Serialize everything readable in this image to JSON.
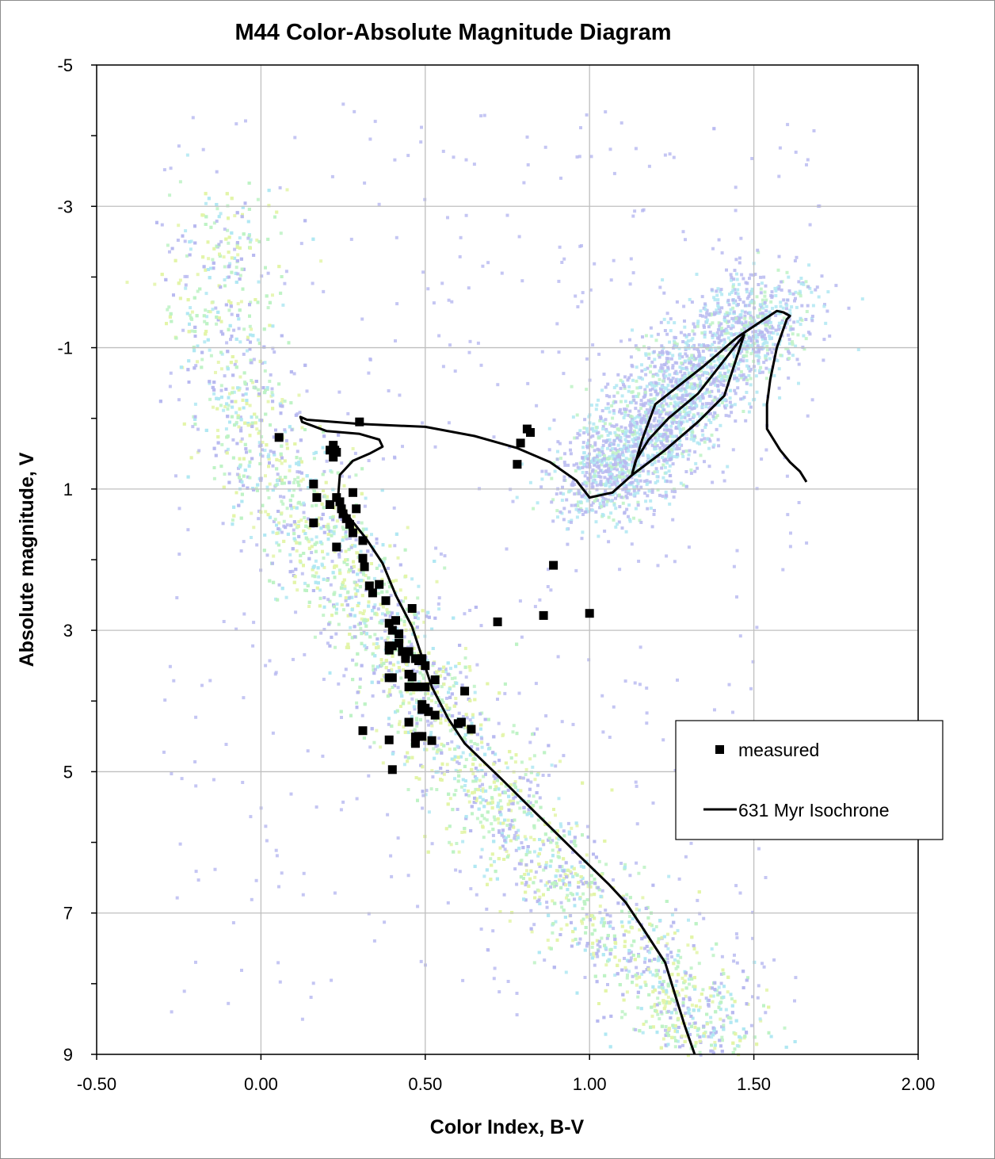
{
  "chart_data": {
    "type": "scatter",
    "title": "M44 Color-Absolute Magnitude Diagram",
    "xlabel": "Color Index, B-V",
    "ylabel": "Absolute magnitude, V",
    "xlim": [
      -0.5,
      2.0
    ],
    "ylim": [
      9,
      -5
    ],
    "y_inverted": true,
    "grid": true,
    "x_ticks": [
      -0.5,
      0.0,
      0.5,
      1.0,
      1.5,
      2.0
    ],
    "x_tick_labels": [
      "-0.50",
      "0.00",
      "0.50",
      "1.00",
      "1.50",
      "2.00"
    ],
    "y_ticks": [
      -5,
      -3,
      -1,
      1,
      3,
      5,
      7,
      9
    ],
    "y_tick_labels": [
      "-5",
      "-3",
      "-1",
      "1",
      "3",
      "5",
      "7",
      "9"
    ],
    "legend_position": "right",
    "background_density": "Hess-diagram field star density (blue-green-yellow)",
    "series": [
      {
        "name": "measured",
        "type": "scatter",
        "marker": "square",
        "color": "#000000",
        "points": [
          [
            0.3,
            0.05
          ],
          [
            0.055,
            0.27
          ],
          [
            0.22,
            0.38
          ],
          [
            0.21,
            0.45
          ],
          [
            0.225,
            0.45
          ],
          [
            0.23,
            0.48
          ],
          [
            0.22,
            0.55
          ],
          [
            0.16,
            0.93
          ],
          [
            0.17,
            1.12
          ],
          [
            0.16,
            1.48
          ],
          [
            0.21,
            1.22
          ],
          [
            0.23,
            1.12
          ],
          [
            0.24,
            1.18
          ],
          [
            0.245,
            1.28
          ],
          [
            0.25,
            1.35
          ],
          [
            0.26,
            1.42
          ],
          [
            0.27,
            1.5
          ],
          [
            0.28,
            1.62
          ],
          [
            0.28,
            1.05
          ],
          [
            0.29,
            1.28
          ],
          [
            0.23,
            1.82
          ],
          [
            0.31,
            1.73
          ],
          [
            0.31,
            1.98
          ],
          [
            0.315,
            2.1
          ],
          [
            0.33,
            2.37
          ],
          [
            0.34,
            2.47
          ],
          [
            0.36,
            2.35
          ],
          [
            0.38,
            2.58
          ],
          [
            0.46,
            2.69
          ],
          [
            0.39,
            2.9
          ],
          [
            0.4,
            3.0
          ],
          [
            0.41,
            2.86
          ],
          [
            0.42,
            3.05
          ],
          [
            0.42,
            3.18
          ],
          [
            0.39,
            3.22
          ],
          [
            0.39,
            3.28
          ],
          [
            0.4,
            3.22
          ],
          [
            0.43,
            3.3
          ],
          [
            0.44,
            3.34
          ],
          [
            0.44,
            3.4
          ],
          [
            0.45,
            3.3
          ],
          [
            0.47,
            3.4
          ],
          [
            0.48,
            3.43
          ],
          [
            0.49,
            3.4
          ],
          [
            0.5,
            3.5
          ],
          [
            0.39,
            3.67
          ],
          [
            0.4,
            3.67
          ],
          [
            0.45,
            3.62
          ],
          [
            0.46,
            3.66
          ],
          [
            0.45,
            3.8
          ],
          [
            0.47,
            3.8
          ],
          [
            0.49,
            3.8
          ],
          [
            0.5,
            3.8
          ],
          [
            0.53,
            3.7
          ],
          [
            0.62,
            3.86
          ],
          [
            0.49,
            4.05
          ],
          [
            0.49,
            4.12
          ],
          [
            0.5,
            4.1
          ],
          [
            0.51,
            4.15
          ],
          [
            0.53,
            4.2
          ],
          [
            0.45,
            4.3
          ],
          [
            0.61,
            4.3
          ],
          [
            0.6,
            4.32
          ],
          [
            0.64,
            4.4
          ],
          [
            0.31,
            4.42
          ],
          [
            0.39,
            4.55
          ],
          [
            0.47,
            4.51
          ],
          [
            0.48,
            4.5
          ],
          [
            0.49,
            4.5
          ],
          [
            0.47,
            4.6
          ],
          [
            0.52,
            4.56
          ],
          [
            0.4,
            4.97
          ],
          [
            0.81,
            0.15
          ],
          [
            0.82,
            0.2
          ],
          [
            0.79,
            0.35
          ],
          [
            0.78,
            0.65
          ],
          [
            0.89,
            2.08
          ],
          [
            0.72,
            2.88
          ],
          [
            0.86,
            2.79
          ],
          [
            1.0,
            2.76
          ]
        ]
      },
      {
        "name": "631 Myr Isochrone",
        "type": "line",
        "color": "#000000",
        "points": [
          [
            1.32,
            9.0
          ],
          [
            1.29,
            8.6
          ],
          [
            1.26,
            8.15
          ],
          [
            1.23,
            7.7
          ],
          [
            1.16,
            7.2
          ],
          [
            1.11,
            6.85
          ],
          [
            1.06,
            6.6
          ],
          [
            0.96,
            6.15
          ],
          [
            0.84,
            5.6
          ],
          [
            0.72,
            5.05
          ],
          [
            0.62,
            4.6
          ],
          [
            0.57,
            4.25
          ],
          [
            0.52,
            3.8
          ],
          [
            0.46,
            2.95
          ],
          [
            0.41,
            2.5
          ],
          [
            0.37,
            2.05
          ],
          [
            0.32,
            1.7
          ],
          [
            0.26,
            1.35
          ],
          [
            0.235,
            1.1
          ],
          [
            0.24,
            0.8
          ],
          [
            0.28,
            0.6
          ],
          [
            0.33,
            0.5
          ],
          [
            0.37,
            0.4
          ],
          [
            0.36,
            0.3
          ],
          [
            0.3,
            0.22
          ],
          [
            0.2,
            0.18
          ],
          [
            0.125,
            0.05
          ],
          [
            0.12,
            -0.02
          ],
          [
            0.14,
            0.02
          ],
          [
            0.3,
            0.08
          ],
          [
            0.5,
            0.12
          ],
          [
            0.65,
            0.25
          ],
          [
            0.78,
            0.42
          ],
          [
            0.88,
            0.62
          ],
          [
            0.96,
            0.88
          ],
          [
            1.0,
            1.12
          ],
          [
            1.07,
            1.05
          ],
          [
            1.13,
            0.8
          ],
          [
            1.23,
            0.45
          ],
          [
            1.33,
            0.05
          ],
          [
            1.41,
            -0.32
          ],
          [
            1.47,
            -1.18
          ],
          [
            1.33,
            -0.35
          ],
          [
            1.24,
            0.0
          ],
          [
            1.18,
            0.3
          ],
          [
            1.14,
            0.6
          ],
          [
            1.13,
            0.78
          ],
          [
            1.16,
            0.3
          ],
          [
            1.2,
            -0.2
          ],
          [
            1.35,
            -0.75
          ],
          [
            1.45,
            -1.15
          ],
          [
            1.57,
            -1.52
          ],
          [
            1.59,
            -1.5
          ],
          [
            1.61,
            -1.45
          ],
          [
            1.6,
            -1.4
          ],
          [
            1.57,
            -1.0
          ],
          [
            1.55,
            -0.55
          ],
          [
            1.54,
            -0.2
          ],
          [
            1.54,
            0.15
          ],
          [
            1.58,
            0.45
          ],
          [
            1.61,
            0.62
          ],
          [
            1.64,
            0.75
          ],
          [
            1.66,
            0.9
          ]
        ]
      }
    ]
  }
}
